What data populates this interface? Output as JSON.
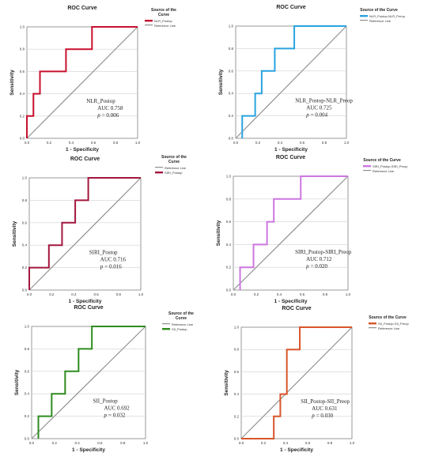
{
  "figure": {
    "panels": [
      {
        "title": "ROC Curve",
        "xlabel": "1 - Specificity",
        "ylabel": "Sensitivity",
        "legend_title": [
          "Source of the",
          "Curve"
        ],
        "legend_entries": [
          "NLR_Postop",
          "Reference Line"
        ],
        "annotation": {
          "name": "NLR_Postop",
          "auc": "AUC 0.758",
          "p_symbol": "p",
          "p_value": "= 0.006"
        },
        "xticks": [
          "0.0",
          "0.2",
          "0.4",
          "0.6",
          "0.8",
          "1.0"
        ],
        "yticks": [
          "0.0",
          "0.2",
          "0.4",
          "0.6",
          "0.8",
          "1.0"
        ],
        "color": "#c8102e"
      },
      {
        "title": "ROC Curve",
        "xlabel": "1 - Specificity",
        "ylabel": "Sensitivity",
        "legend_title": [
          "Source of the Curve"
        ],
        "legend_entries": [
          "NLR_Postop-NLR_Preop",
          "Reference Line"
        ],
        "annotation": {
          "name": "NLR_Postop-NLR_Preop",
          "auc": "AUC 0.725",
          "p_symbol": "p",
          "p_value": "= 0.004"
        },
        "xticks": [
          "0.0",
          "0.2",
          "0.4",
          "0.6",
          "0.8",
          "1.0"
        ],
        "yticks": [
          "0.0",
          "0.2",
          "0.4",
          "0.6",
          "0.8",
          "1.0"
        ],
        "color": "#29a3e0"
      },
      {
        "title": "ROC Curve",
        "xlabel": "1 - Specificity",
        "ylabel": "Sensitivity",
        "legend_title": [
          "Source of the",
          "Curve"
        ],
        "legend_entries": [
          "Reference Line",
          "SIRI_Postop"
        ],
        "annotation": {
          "name": "SIRI_Postop",
          "auc": "AUC 0.716",
          "p_symbol": "p",
          "p_value": "= 0.016"
        },
        "xticks": [
          "0.0",
          "0.2",
          "0.4",
          "0.6",
          "0.8",
          "1.0"
        ],
        "yticks": [
          "0.0",
          "0.2",
          "0.4",
          "0.6",
          "0.8",
          "1.0"
        ],
        "color": "#a3163d"
      },
      {
        "title": "ROC Curve",
        "xlabel": "1 - Specificity",
        "ylabel": "Sensitivity",
        "legend_title": [
          "Source of the Curve"
        ],
        "legend_entries": [
          "SIRI_Postop-SIRI_Preop",
          "Reference Line"
        ],
        "annotation": {
          "name": "SIRI_Postop-SIRI_Preop",
          "auc": "AUC 0.712",
          "p_symbol": "p",
          "p_value": "= 0.020"
        },
        "xticks": [
          "0.0",
          "0.2",
          "0.4",
          "0.6",
          "0.8",
          "1.0"
        ],
        "yticks": [
          "0.0",
          "0.2",
          "0.4",
          "0.6",
          "0.8",
          "1.0"
        ],
        "color": "#cc77e0"
      },
      {
        "title": "ROC Curve",
        "xlabel": "1 - Specificity",
        "ylabel": "Sensitivity",
        "legend_title": [
          "Source of the",
          "Curve"
        ],
        "legend_entries": [
          "Reference Line",
          "SII_Postop"
        ],
        "annotation": {
          "name": "SII_Postop",
          "auc": "AUC 0.692",
          "p_symbol": "p",
          "p_value": "= 0.032"
        },
        "xticks": [
          "0.0",
          "0.2",
          "0.4",
          "0.6",
          "0.8",
          "1.0"
        ],
        "yticks": [
          "0.0",
          "0.2",
          "0.4",
          "0.6",
          "0.8",
          "1.0"
        ],
        "color": "#2e8b1f"
      },
      {
        "title": "ROC Curve",
        "xlabel": "1 - Specificity",
        "ylabel": "Sensitivity",
        "legend_title": [
          "Source of the Curve"
        ],
        "legend_entries": [
          "SII_Postop-SII_Preop",
          "Reference Line"
        ],
        "annotation": {
          "name": "SII_Postop-SII_Preop",
          "auc": "AUC 0.631",
          "p_symbol": "p",
          "p_value": "= 0.030"
        },
        "xticks": [
          "0.0",
          "0.2",
          "0.4",
          "0.6",
          "0.8",
          "1.0"
        ],
        "yticks": [
          "0.0",
          "0.2",
          "0.4",
          "0.6",
          "0.8",
          "1.0"
        ],
        "color": "#d9552a"
      }
    ]
  },
  "chart_data": [
    {
      "type": "line",
      "title": "ROC Curve",
      "xlabel": "1 - Specificity",
      "ylabel": "Sensitivity",
      "xlim": [
        0,
        1
      ],
      "ylim": [
        0,
        1
      ],
      "grid": "horizontal",
      "legend": "right",
      "series": [
        {
          "name": "NLR_Postop",
          "color": "#c8102e",
          "x": [
            0,
            0,
            0.059,
            0.059,
            0.118,
            0.118,
            0.353,
            0.353,
            0.588,
            0.588,
            1.0
          ],
          "y": [
            0,
            0.2,
            0.2,
            0.4,
            0.4,
            0.6,
            0.6,
            0.8,
            0.8,
            1.0,
            1.0
          ]
        },
        {
          "name": "Reference Line",
          "color": "#909090",
          "x": [
            0,
            1
          ],
          "y": [
            0,
            1
          ]
        }
      ]
    },
    {
      "type": "line",
      "title": "ROC Curve",
      "xlabel": "1 - Specificity",
      "ylabel": "Sensitivity",
      "xlim": [
        0,
        1
      ],
      "ylim": [
        0,
        1
      ],
      "grid": "horizontal",
      "legend": "right",
      "series": [
        {
          "name": "NLR_Postop-NLR_Preop",
          "color": "#29a3e0",
          "x": [
            0.059,
            0.059,
            0.176,
            0.176,
            0.235,
            0.235,
            0.353,
            0.353,
            0.529,
            0.529,
            1.0
          ],
          "y": [
            0,
            0.2,
            0.2,
            0.4,
            0.4,
            0.6,
            0.6,
            0.8,
            0.8,
            1.0,
            1.0
          ]
        },
        {
          "name": "Reference Line",
          "color": "#909090",
          "x": [
            0,
            1
          ],
          "y": [
            0,
            1
          ]
        }
      ]
    },
    {
      "type": "line",
      "title": "ROC Curve",
      "xlabel": "1 - Specificity",
      "ylabel": "Sensitivity",
      "xlim": [
        0,
        1
      ],
      "ylim": [
        0,
        1
      ],
      "grid": "horizontal",
      "legend": "right",
      "series": [
        {
          "name": "SIRI_Postop",
          "color": "#a3163d",
          "x": [
            0,
            0,
            0.176,
            0.176,
            0.294,
            0.294,
            0.412,
            0.412,
            0.529,
            0.529,
            1.0
          ],
          "y": [
            0,
            0.2,
            0.2,
            0.4,
            0.4,
            0.6,
            0.6,
            0.8,
            0.8,
            1.0,
            1.0
          ]
        },
        {
          "name": "Reference Line",
          "color": "#909090",
          "x": [
            0,
            1
          ],
          "y": [
            0,
            1
          ]
        }
      ]
    },
    {
      "type": "line",
      "title": "ROC Curve",
      "xlabel": "1 - Specificity",
      "ylabel": "Sensitivity",
      "xlim": [
        0,
        1
      ],
      "ylim": [
        0,
        1
      ],
      "grid": "horizontal",
      "legend": "right",
      "series": [
        {
          "name": "SIRI_Postop-SIRI_Preop",
          "color": "#cc77e0",
          "x": [
            0.059,
            0.059,
            0.176,
            0.176,
            0.294,
            0.294,
            0.353,
            0.353,
            0.588,
            0.588,
            1.0
          ],
          "y": [
            0,
            0.2,
            0.2,
            0.4,
            0.4,
            0.6,
            0.6,
            0.8,
            0.8,
            1.0,
            1.0
          ]
        },
        {
          "name": "Reference Line",
          "color": "#909090",
          "x": [
            0,
            1
          ],
          "y": [
            0,
            1
          ]
        }
      ]
    },
    {
      "type": "line",
      "title": "ROC Curve",
      "xlabel": "1 - Specificity",
      "ylabel": "Sensitivity",
      "xlim": [
        0,
        1
      ],
      "ylim": [
        0,
        1
      ],
      "grid": "horizontal",
      "legend": "right",
      "series": [
        {
          "name": "SII_Postop",
          "color": "#2e8b1f",
          "x": [
            0.059,
            0.059,
            0.176,
            0.176,
            0.294,
            0.294,
            0.412,
            0.412,
            0.529,
            0.529,
            1.0
          ],
          "y": [
            0,
            0.2,
            0.2,
            0.4,
            0.4,
            0.6,
            0.6,
            0.8,
            0.8,
            1.0,
            1.0
          ]
        },
        {
          "name": "Reference Line",
          "color": "#909090",
          "x": [
            0,
            1
          ],
          "y": [
            0,
            1
          ]
        }
      ]
    },
    {
      "type": "line",
      "title": "ROC Curve",
      "xlabel": "1 - Specificity",
      "ylabel": "Sensitivity",
      "xlim": [
        0,
        1
      ],
      "ylim": [
        0,
        1
      ],
      "grid": "horizontal",
      "legend": "right",
      "series": [
        {
          "name": "SII_Postop-SII_Preop",
          "color": "#d9552a",
          "x": [
            0,
            0.294,
            0.294,
            0.353,
            0.353,
            0.412,
            0.412,
            0.471,
            0.471,
            0.529,
            0.529,
            1.0
          ],
          "y": [
            0,
            0,
            0.2,
            0.2,
            0.4,
            0.4,
            0.8,
            0.8,
            0.8,
            0.8,
            1.0,
            1.0
          ]
        },
        {
          "name": "Reference Line",
          "color": "#909090",
          "x": [
            0,
            1
          ],
          "y": [
            0,
            1
          ]
        }
      ]
    }
  ]
}
